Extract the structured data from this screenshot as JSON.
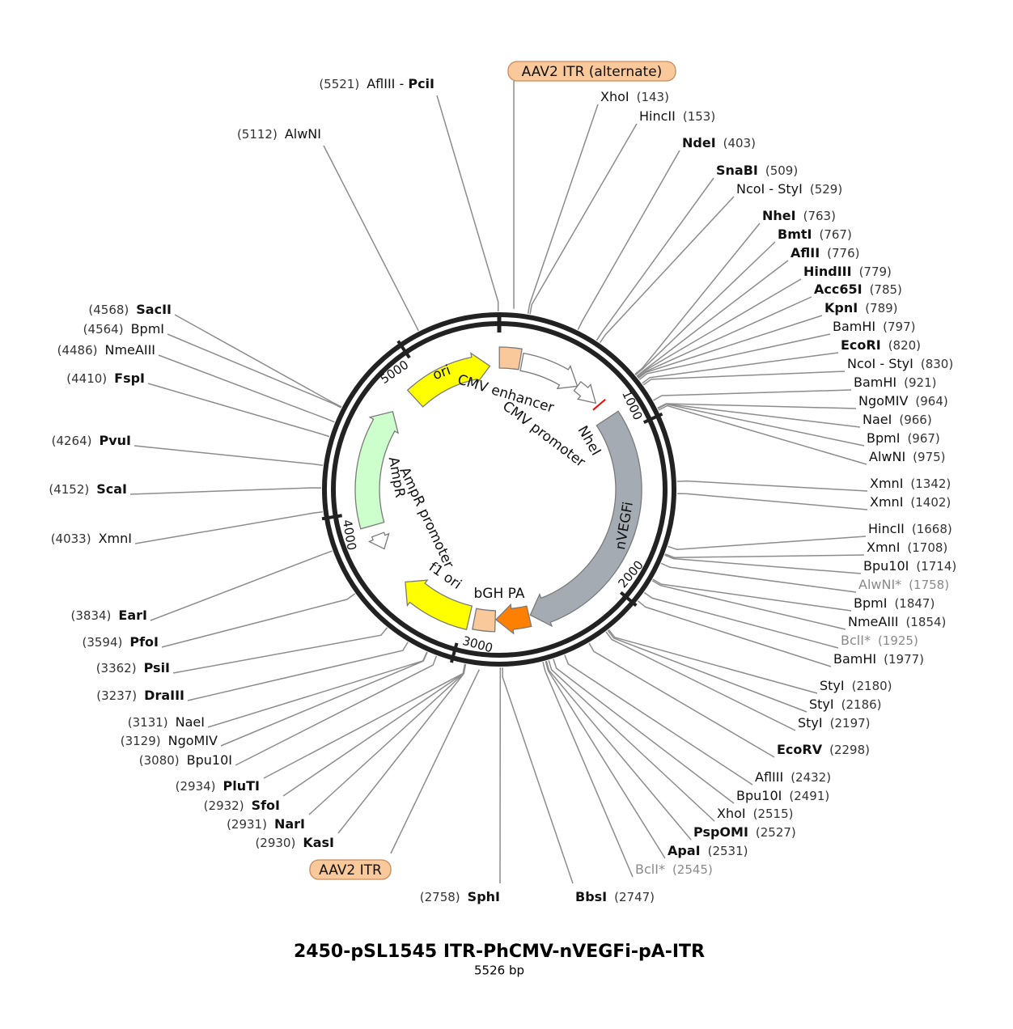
{
  "title": "2450-pSL1545 ITR-PhCMV-nVEGFi-pA-ITR",
  "length": {
    "value": 5526,
    "label": "5526 bp"
  },
  "ticks": [
    1000,
    2000,
    3000,
    4000,
    5000
  ],
  "features": [
    {
      "name": "AAV2 ITR (alternate)",
      "start": 1,
      "end": 141,
      "color": "#f9c89b",
      "shape": "box"
    },
    {
      "name": "CMV enhancer",
      "start": 155,
      "end": 570,
      "color": "#ffffff",
      "shape": "arrow",
      "direction": "cw"
    },
    {
      "name": "CMV promoter",
      "start": 570,
      "end": 740,
      "color": "#ffffff",
      "shape": "arrow",
      "direction": "cw"
    },
    {
      "name": "nVEGFi",
      "start": 870,
      "end": 2550,
      "color": "#a5abb3",
      "shape": "arrow",
      "direction": "cw"
    },
    {
      "name": "bGH PA",
      "start": 2560,
      "end": 2785,
      "color": "#ff7f00",
      "shape": "arrow",
      "direction": "cw"
    },
    {
      "name": "AAV2 ITR",
      "start": 2790,
      "end": 2930,
      "color": "#f9c89b",
      "shape": "box"
    },
    {
      "name": "f1 ori",
      "start": 2965,
      "end": 3460,
      "color": "#ffff00",
      "shape": "arrow",
      "direction": "cw"
    },
    {
      "name": "AmpR promoter",
      "start": 3725,
      "end": 3830,
      "color": "#ffffff",
      "shape": "arrow",
      "direction": "ccw"
    },
    {
      "name": "AmpR",
      "start": 3900,
      "end": 4700,
      "color": "#ccffcc",
      "shape": "arrow",
      "direction": "cw"
    },
    {
      "name": "ori",
      "start": 4870,
      "end": 5460,
      "color": "#ffff00",
      "shape": "arrow",
      "direction": "cw"
    }
  ],
  "markers": [
    {
      "name": "NheI",
      "position": 763,
      "color": "#ff0000"
    }
  ],
  "sites": [
    {
      "name": "XhoI",
      "pos": {
        "value": 143,
        "label": "(143)"
      }
    },
    {
      "name": "HincII",
      "pos": {
        "value": 153,
        "label": "(153)"
      }
    },
    {
      "name": "NdeI",
      "pos": {
        "value": 403,
        "label": "(403)"
      },
      "bold": true
    },
    {
      "name": "SnaBI",
      "pos": {
        "value": 509,
        "label": "(509)"
      },
      "bold": true
    },
    {
      "name": "NcoI - StyI",
      "pos": {
        "value": 529,
        "label": "(529)"
      }
    },
    {
      "name": "NheI",
      "pos": {
        "value": 763,
        "label": "(763)"
      },
      "bold": true
    },
    {
      "name": "BmtI",
      "pos": {
        "value": 767,
        "label": "(767)"
      },
      "bold": true
    },
    {
      "name": "AflII",
      "pos": {
        "value": 776,
        "label": "(776)"
      },
      "bold": true
    },
    {
      "name": "HindIII",
      "pos": {
        "value": 779,
        "label": "(779)"
      },
      "bold": true
    },
    {
      "name": "Acc65I",
      "pos": {
        "value": 785,
        "label": "(785)"
      },
      "bold": true
    },
    {
      "name": "KpnI",
      "pos": {
        "value": 789,
        "label": "(789)"
      },
      "bold": true
    },
    {
      "name": "BamHI",
      "pos": {
        "value": 797,
        "label": "(797)"
      }
    },
    {
      "name": "EcoRI",
      "pos": {
        "value": 820,
        "label": "(820)"
      },
      "bold": true
    },
    {
      "name": "NcoI - StyI",
      "pos": {
        "value": 830,
        "label": "(830)"
      }
    },
    {
      "name": "BamHI",
      "pos": {
        "value": 921,
        "label": "(921)"
      }
    },
    {
      "name": "NgoMIV",
      "pos": {
        "value": 964,
        "label": "(964)"
      }
    },
    {
      "name": "NaeI",
      "pos": {
        "value": 966,
        "label": "(966)"
      }
    },
    {
      "name": "BpmI",
      "pos": {
        "value": 967,
        "label": "(967)"
      }
    },
    {
      "name": "AlwNI",
      "pos": {
        "value": 975,
        "label": "(975)"
      }
    },
    {
      "name": "XmnI",
      "pos": {
        "value": 1342,
        "label": "(1342)"
      }
    },
    {
      "name": "XmnI",
      "pos": {
        "value": 1402,
        "label": "(1402)"
      }
    },
    {
      "name": "HincII",
      "pos": {
        "value": 1668,
        "label": "(1668)"
      }
    },
    {
      "name": "XmnI",
      "pos": {
        "value": 1708,
        "label": "(1708)"
      }
    },
    {
      "name": "Bpu10I",
      "pos": {
        "value": 1714,
        "label": "(1714)"
      }
    },
    {
      "name": "AlwNI*",
      "pos": {
        "value": 1758,
        "label": "(1758)"
      },
      "faded": true
    },
    {
      "name": "BpmI",
      "pos": {
        "value": 1847,
        "label": "(1847)"
      }
    },
    {
      "name": "NmeAIII",
      "pos": {
        "value": 1854,
        "label": "(1854)"
      }
    },
    {
      "name": "BclI*",
      "pos": {
        "value": 1925,
        "label": "(1925)"
      },
      "faded": true
    },
    {
      "name": "BamHI",
      "pos": {
        "value": 1977,
        "label": "(1977)"
      }
    },
    {
      "name": "StyI",
      "pos": {
        "value": 2180,
        "label": "(2180)"
      }
    },
    {
      "name": "StyI",
      "pos": {
        "value": 2186,
        "label": "(2186)"
      }
    },
    {
      "name": "StyI",
      "pos": {
        "value": 2197,
        "label": "(2197)"
      }
    },
    {
      "name": "EcoRV",
      "pos": {
        "value": 2298,
        "label": "(2298)"
      },
      "bold": true
    },
    {
      "name": "AflIII",
      "pos": {
        "value": 2432,
        "label": "(2432)"
      }
    },
    {
      "name": "Bpu10I",
      "pos": {
        "value": 2491,
        "label": "(2491)"
      }
    },
    {
      "name": "XhoI",
      "pos": {
        "value": 2515,
        "label": "(2515)"
      }
    },
    {
      "name": "PspOMI",
      "pos": {
        "value": 2527,
        "label": "(2527)"
      },
      "bold": true
    },
    {
      "name": "ApaI",
      "pos": {
        "value": 2531,
        "label": "(2531)"
      },
      "bold": true
    },
    {
      "name": "BclI*",
      "pos": {
        "value": 2545,
        "label": "(2545)"
      },
      "faded": true
    },
    {
      "name": "BbsI",
      "pos": {
        "value": 2747,
        "label": "(2747)"
      },
      "bold": true
    },
    {
      "name": "SphI",
      "pos": {
        "value": 2758,
        "label": "(2758)"
      },
      "bold": true
    },
    {
      "name": "KasI",
      "pos": {
        "value": 2930,
        "label": "(2930)"
      },
      "bold": true
    },
    {
      "name": "NarI",
      "pos": {
        "value": 2931,
        "label": "(2931)"
      },
      "bold": true
    },
    {
      "name": "SfoI",
      "pos": {
        "value": 2932,
        "label": "(2932)"
      },
      "bold": true
    },
    {
      "name": "PluTI",
      "pos": {
        "value": 2934,
        "label": "(2934)"
      },
      "bold": true
    },
    {
      "name": "Bpu10I",
      "pos": {
        "value": 3080,
        "label": "(3080)"
      }
    },
    {
      "name": "NgoMIV",
      "pos": {
        "value": 3129,
        "label": "(3129)"
      }
    },
    {
      "name": "NaeI",
      "pos": {
        "value": 3131,
        "label": "(3131)"
      }
    },
    {
      "name": "DraIII",
      "pos": {
        "value": 3237,
        "label": "(3237)"
      },
      "bold": true
    },
    {
      "name": "PsiI",
      "pos": {
        "value": 3362,
        "label": "(3362)"
      },
      "bold": true
    },
    {
      "name": "PfoI",
      "pos": {
        "value": 3594,
        "label": "(3594)"
      },
      "bold": true
    },
    {
      "name": "EarI",
      "pos": {
        "value": 3834,
        "label": "(3834)"
      },
      "bold": true
    },
    {
      "name": "XmnI",
      "pos": {
        "value": 4033,
        "label": "(4033)"
      }
    },
    {
      "name": "ScaI",
      "pos": {
        "value": 4152,
        "label": "(4152)"
      },
      "bold": true
    },
    {
      "name": "PvuI",
      "pos": {
        "value": 4264,
        "label": "(4264)"
      },
      "bold": true
    },
    {
      "name": "FspI",
      "pos": {
        "value": 4410,
        "label": "(4410)"
      },
      "bold": true
    },
    {
      "name": "NmeAIII",
      "pos": {
        "value": 4486,
        "label": "(4486)"
      }
    },
    {
      "name": "BpmI",
      "pos": {
        "value": 4564,
        "label": "(4564)"
      }
    },
    {
      "name": "SacII",
      "pos": {
        "value": 4568,
        "label": "(4568)"
      },
      "bold": true
    },
    {
      "name": "AlwNI",
      "pos": {
        "value": 5112,
        "label": "(5112)"
      }
    },
    {
      "name": "AflIII - ",
      "name2": "PciI",
      "pos": {
        "value": 5521,
        "label": "(5521)"
      }
    }
  ]
}
